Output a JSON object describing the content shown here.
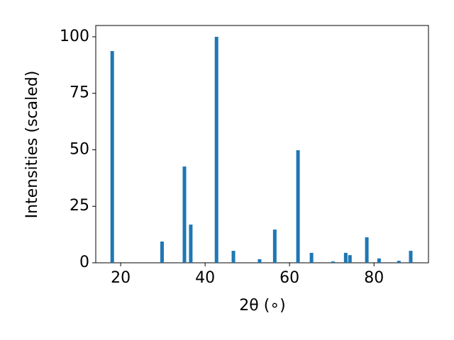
{
  "chart_data": {
    "type": "bar",
    "xlabel": "2θ (∘)",
    "ylabel": "Intensities (scaled)",
    "x": [
      18.0,
      29.8,
      35.1,
      36.6,
      42.7,
      46.7,
      52.9,
      56.5,
      62.0,
      65.2,
      70.3,
      73.3,
      74.3,
      78.3,
      81.2,
      85.9,
      88.7
    ],
    "values": [
      93.7,
      9.4,
      42.6,
      16.9,
      100,
      5.3,
      1.6,
      14.7,
      49.8,
      4.4,
      0.6,
      4.4,
      3.4,
      11.3,
      1.9,
      0.9,
      5.3
    ],
    "color": "#1f77b4",
    "xlim": [
      14.1,
      92.9
    ],
    "ylim": [
      0,
      105
    ],
    "xticks": [
      20,
      40,
      60,
      80
    ],
    "yticks": [
      0,
      25,
      50,
      75,
      100
    ]
  }
}
